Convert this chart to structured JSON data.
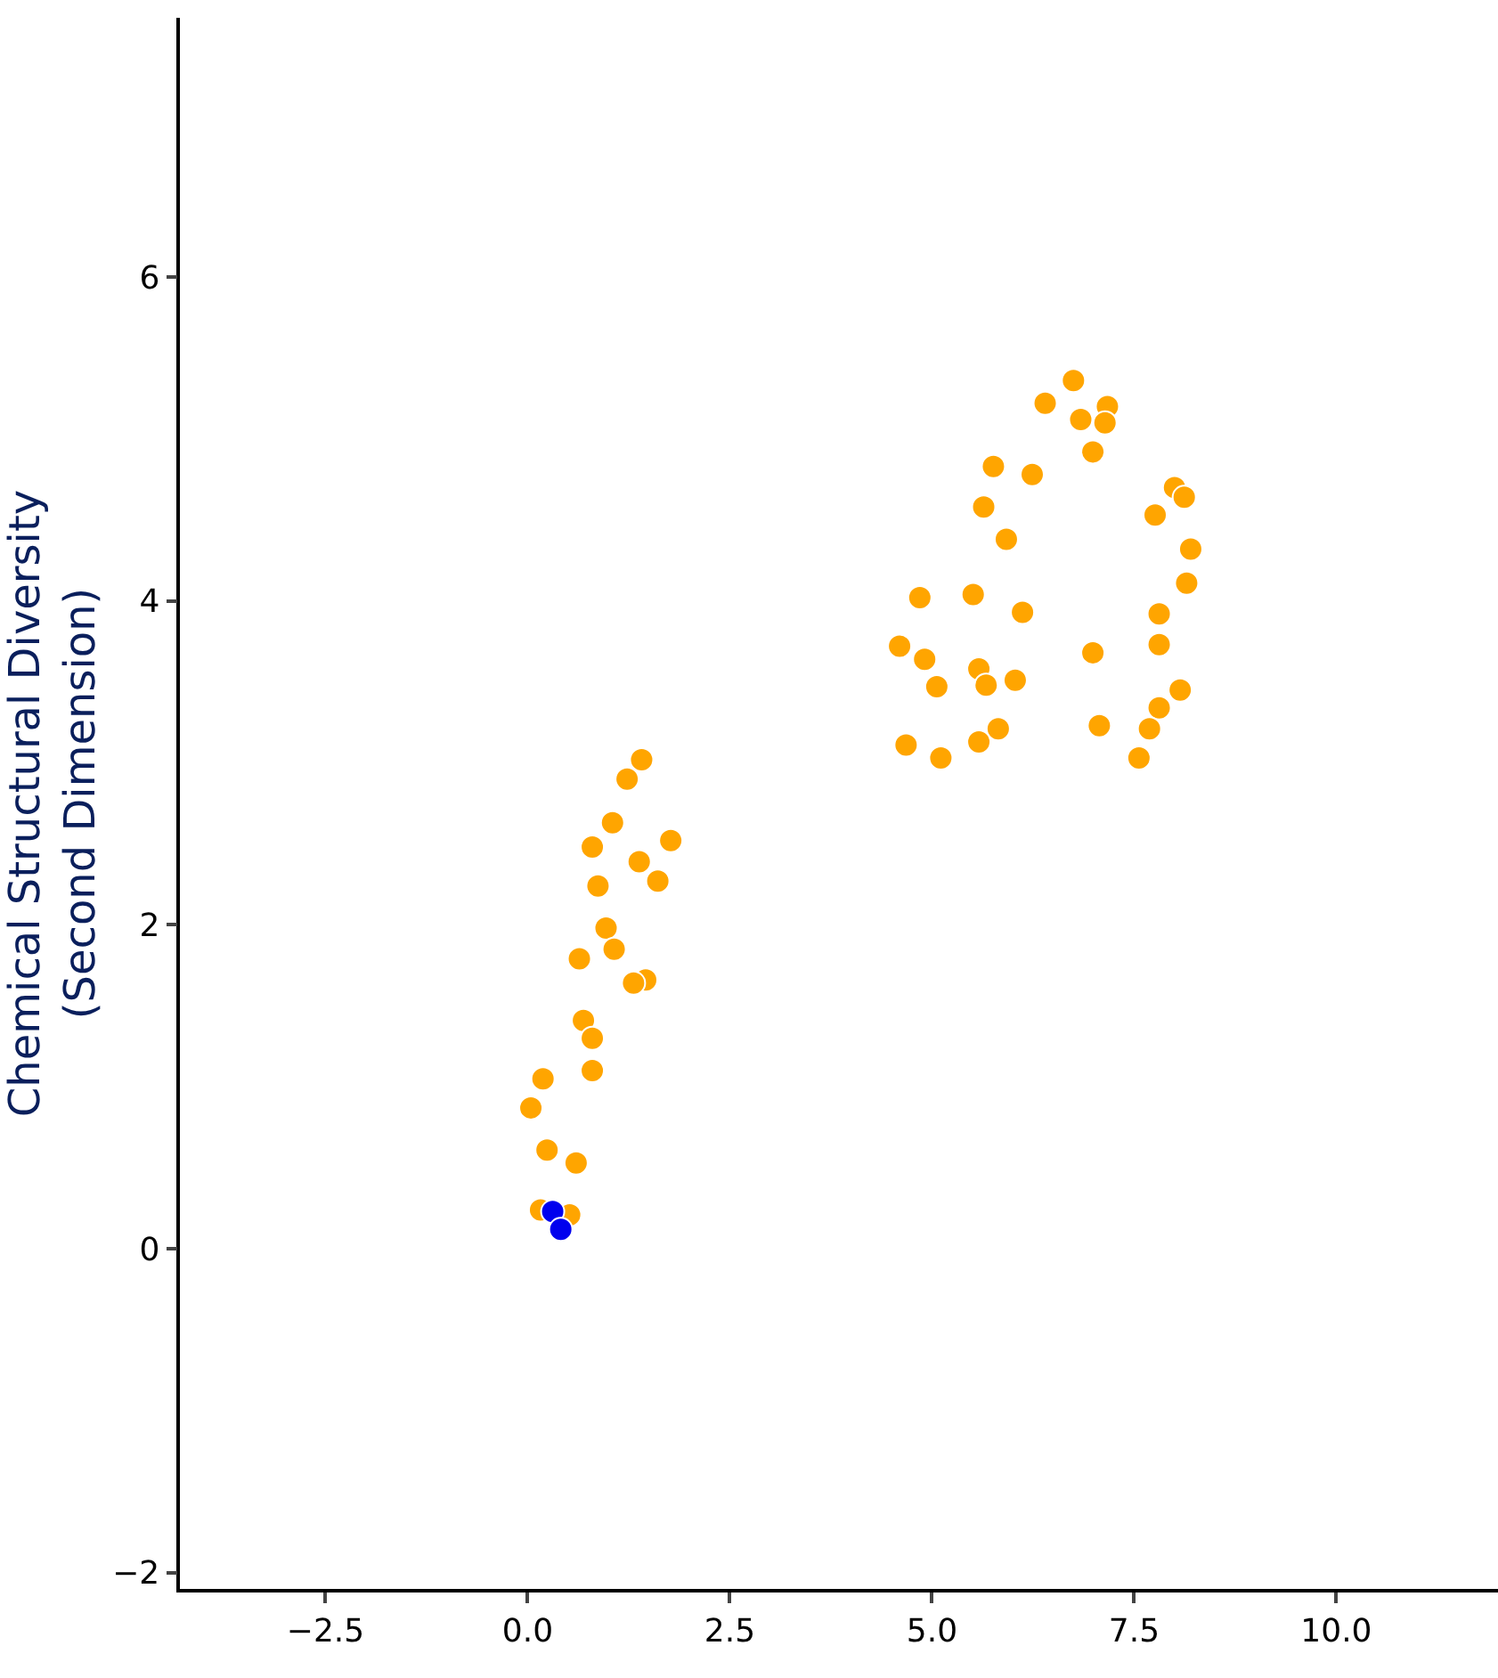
{
  "chart_data": {
    "type": "scatter",
    "ylabel": "Chemical Structural Diversity\n(Second Dimension)",
    "xlim": [
      -4.3,
      12.0
    ],
    "ylim": [
      -2.1,
      7.6
    ],
    "xticks": [
      {
        "value": -2.5,
        "label": "−2.5"
      },
      {
        "value": 0,
        "label": "0.0"
      },
      {
        "value": 2.5,
        "label": "2.5"
      },
      {
        "value": 5,
        "label": "5.0"
      },
      {
        "value": 7.5,
        "label": "7.5"
      },
      {
        "value": 10,
        "label": "10.0"
      }
    ],
    "yticks": [
      {
        "value": -2,
        "label": "−2"
      },
      0,
      2,
      4,
      6
    ],
    "marker": "circle",
    "series": [
      {
        "color": "#ffa500",
        "x": [
          1.41,
          1.23,
          1.77,
          1.05,
          0.8,
          1.38,
          1.61,
          0.87,
          0.97,
          1.07,
          0.64,
          1.46,
          1.31,
          0.69,
          0.8,
          0.8,
          0.19,
          0.04,
          0.24,
          0.6,
          0.16,
          0.52,
          6.75,
          6.4,
          7.17,
          6.84,
          7.14,
          6.99,
          5.76,
          6.24,
          5.64,
          5.92,
          8.0,
          8.12,
          7.76,
          8.2,
          8.15,
          4.85,
          5.51,
          6.12,
          7.81,
          7.81,
          4.6,
          4.91,
          5.58,
          6.99,
          5.06,
          5.67,
          6.03,
          8.07,
          7.81,
          7.69,
          7.07,
          5.82,
          5.58,
          4.68,
          5.11,
          7.56
        ],
        "values": [
          3.02,
          2.9,
          2.52,
          2.63,
          2.48,
          2.39,
          2.27,
          2.24,
          1.98,
          1.85,
          1.79,
          1.66,
          1.64,
          1.41,
          1.3,
          1.1,
          1.05,
          0.87,
          0.61,
          0.53,
          0.24,
          0.21,
          5.36,
          5.22,
          5.2,
          5.12,
          5.1,
          4.92,
          4.83,
          4.78,
          4.58,
          4.38,
          4.7,
          4.64,
          4.53,
          4.32,
          4.11,
          4.02,
          4.04,
          3.93,
          3.92,
          3.73,
          3.72,
          3.64,
          3.58,
          3.68,
          3.47,
          3.48,
          3.51,
          3.45,
          3.34,
          3.21,
          3.23,
          3.21,
          3.13,
          3.11,
          3.03,
          3.03
        ]
      },
      {
        "color": "#0000ee",
        "x": [
          0.31,
          0.41
        ],
        "values": [
          0.23,
          0.12
        ]
      }
    ]
  }
}
